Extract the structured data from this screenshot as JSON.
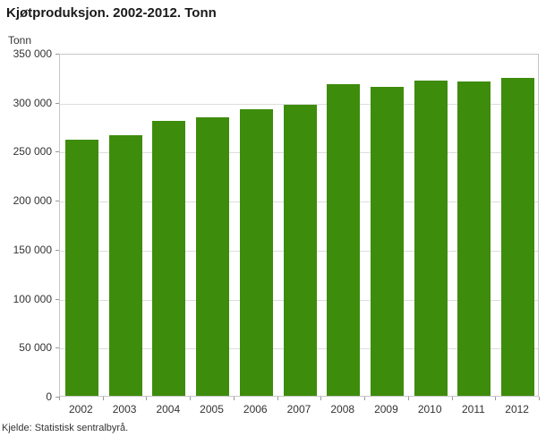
{
  "source": "Kjelde: Statistisk sentralbyrå.",
  "chart_data": {
    "type": "bar",
    "title": "Kjøtproduksjon. 2002-2012. Tonn",
    "ylabel": "Tonn",
    "xlabel": "",
    "categories": [
      "2002",
      "2003",
      "2004",
      "2005",
      "2006",
      "2007",
      "2008",
      "2009",
      "2010",
      "2011",
      "2012"
    ],
    "values": [
      261000,
      266000,
      281000,
      284000,
      292000,
      297000,
      318000,
      315000,
      322000,
      321000,
      324000
    ],
    "ylim": [
      0,
      350000
    ],
    "ytick_interval": 50000,
    "ytick_labels": [
      "0",
      "50 000",
      "100 000",
      "150 000",
      "200 000",
      "250 000",
      "300 000",
      "350 000"
    ],
    "bar_color": "#3e8c0b",
    "grid": true,
    "legend": "none"
  }
}
